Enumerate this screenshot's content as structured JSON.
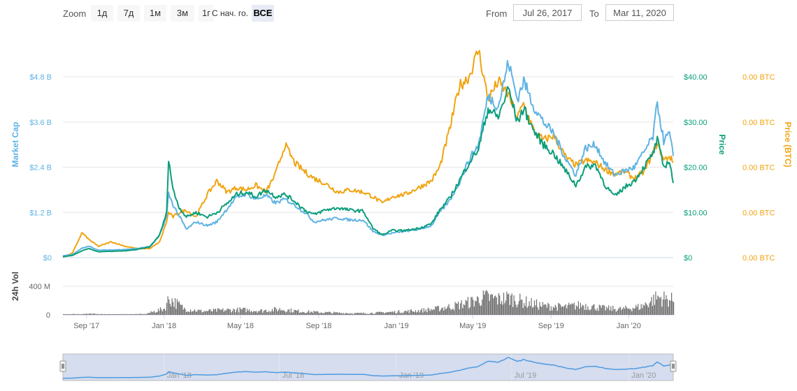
{
  "toolbar": {
    "zoom_label": "Zoom",
    "zoom_buttons": [
      "1д",
      "7д",
      "1м",
      "3м",
      "1г",
      "С нач. го.",
      "ВСЕ"
    ],
    "active_button": "ВСЕ",
    "from_label": "From",
    "from_value": "Jul 26, 2017",
    "to_label": "To",
    "to_value": "Mar 11, 2020"
  },
  "colors": {
    "market_cap": "#5fb3e3",
    "price": "#0a9e7a",
    "price_btc": "#f0a411",
    "volume": "#6e6e6e",
    "navigator_fill": "#d5ddef",
    "navigator_line": "#4f9be0"
  },
  "chart_data": {
    "type": "line",
    "x_range": [
      "2017-07-26",
      "2020-03-11"
    ],
    "x_ticks": [
      "Sep '17",
      "Jan '18",
      "May '18",
      "Sep '18",
      "Jan '19",
      "May '19",
      "Sep '19",
      "Jan '20"
    ],
    "x_tick_dates": [
      "2017-09-01",
      "2018-01-01",
      "2018-05-01",
      "2018-09-01",
      "2019-01-01",
      "2019-05-01",
      "2019-09-01",
      "2020-01-01"
    ],
    "grid": true,
    "y_axes": {
      "market_cap": {
        "label": "Market Cap",
        "ticks": [
          "$0",
          "$1.2 B",
          "$2.4 B",
          "$3.6 B",
          "$4.8 B"
        ],
        "range": [
          0,
          4.8
        ]
      },
      "price": {
        "label": "Price",
        "ticks": [
          "$0",
          "$10.00",
          "$20.00",
          "$30.00",
          "$40.00"
        ],
        "range": [
          0,
          40
        ]
      },
      "price_btc": {
        "label": "Price (BTC)",
        "ticks": [
          "0.00 BTC",
          "0.00 BTC",
          "0.00 BTC",
          "0.00 BTC",
          "0.00 BTC"
        ]
      },
      "volume": {
        "label": "24h Vol",
        "ticks": [
          "0",
          "400 M"
        ],
        "range": [
          0,
          400
        ]
      }
    },
    "series": [
      {
        "name": "Market Cap",
        "unit": "B USD",
        "points": [
          [
            "2017-07-26",
            0.05
          ],
          [
            "2017-08-10",
            0.08
          ],
          [
            "2017-08-25",
            0.25
          ],
          [
            "2017-09-05",
            0.3
          ],
          [
            "2017-09-20",
            0.2
          ],
          [
            "2017-10-10",
            0.2
          ],
          [
            "2017-11-01",
            0.22
          ],
          [
            "2017-11-20",
            0.24
          ],
          [
            "2017-12-10",
            0.3
          ],
          [
            "2017-12-25",
            0.6
          ],
          [
            "2018-01-05",
            1.1
          ],
          [
            "2018-01-08",
            1.7
          ],
          [
            "2018-01-15",
            1.4
          ],
          [
            "2018-01-25",
            1.1
          ],
          [
            "2018-02-05",
            0.75
          ],
          [
            "2018-02-20",
            0.95
          ],
          [
            "2018-03-10",
            0.85
          ],
          [
            "2018-03-25",
            0.95
          ],
          [
            "2018-04-10",
            1.3
          ],
          [
            "2018-04-25",
            1.6
          ],
          [
            "2018-05-10",
            1.7
          ],
          [
            "2018-05-25",
            1.55
          ],
          [
            "2018-06-10",
            1.65
          ],
          [
            "2018-06-25",
            1.45
          ],
          [
            "2018-07-10",
            1.55
          ],
          [
            "2018-07-25",
            1.4
          ],
          [
            "2018-08-10",
            1.2
          ],
          [
            "2018-08-25",
            0.95
          ],
          [
            "2018-09-10",
            1.0
          ],
          [
            "2018-10-01",
            1.05
          ],
          [
            "2018-10-20",
            1.0
          ],
          [
            "2018-11-10",
            1.0
          ],
          [
            "2018-11-25",
            0.7
          ],
          [
            "2018-12-10",
            0.6
          ],
          [
            "2018-12-25",
            0.65
          ],
          [
            "2019-01-15",
            0.7
          ],
          [
            "2019-02-05",
            0.75
          ],
          [
            "2019-02-25",
            0.85
          ],
          [
            "2019-03-10",
            1.2
          ],
          [
            "2019-03-25",
            1.5
          ],
          [
            "2019-04-10",
            2.0
          ],
          [
            "2019-04-25",
            2.6
          ],
          [
            "2019-05-10",
            3.0
          ],
          [
            "2019-05-25",
            4.3
          ],
          [
            "2019-06-10",
            4.0
          ],
          [
            "2019-06-26",
            5.2
          ],
          [
            "2019-07-10",
            4.2
          ],
          [
            "2019-07-20",
            4.7
          ],
          [
            "2019-08-05",
            4.0
          ],
          [
            "2019-08-20",
            3.6
          ],
          [
            "2019-09-05",
            3.3
          ],
          [
            "2019-09-25",
            2.6
          ],
          [
            "2019-10-10",
            2.2
          ],
          [
            "2019-10-25",
            2.9
          ],
          [
            "2019-11-10",
            3.0
          ],
          [
            "2019-11-25",
            2.5
          ],
          [
            "2019-12-10",
            2.2
          ],
          [
            "2019-12-25",
            2.3
          ],
          [
            "2020-01-10",
            2.4
          ],
          [
            "2020-01-25",
            2.8
          ],
          [
            "2020-02-08",
            3.2
          ],
          [
            "2020-02-15",
            4.1
          ],
          [
            "2020-02-25",
            3.1
          ],
          [
            "2020-03-05",
            3.3
          ],
          [
            "2020-03-11",
            2.7
          ]
        ]
      },
      {
        "name": "Price",
        "unit": "USD",
        "points": [
          [
            "2017-07-26",
            0.2
          ],
          [
            "2017-08-10",
            0.5
          ],
          [
            "2017-08-25",
            1.5
          ],
          [
            "2017-09-05",
            2.0
          ],
          [
            "2017-09-20",
            1.3
          ],
          [
            "2017-10-10",
            1.4
          ],
          [
            "2017-11-01",
            1.5
          ],
          [
            "2017-11-20",
            1.8
          ],
          [
            "2017-12-10",
            2.4
          ],
          [
            "2017-12-25",
            5.0
          ],
          [
            "2018-01-05",
            10.0
          ],
          [
            "2018-01-08",
            22.0
          ],
          [
            "2018-01-15",
            15.0
          ],
          [
            "2018-01-25",
            11.0
          ],
          [
            "2018-02-05",
            9.0
          ],
          [
            "2018-02-20",
            10.0
          ],
          [
            "2018-03-10",
            9.0
          ],
          [
            "2018-03-25",
            10.0
          ],
          [
            "2018-04-10",
            12.0
          ],
          [
            "2018-04-25",
            14.0
          ],
          [
            "2018-05-10",
            14.5
          ],
          [
            "2018-05-25",
            13.5
          ],
          [
            "2018-06-10",
            15.0
          ],
          [
            "2018-06-25",
            13.5
          ],
          [
            "2018-07-10",
            14.0
          ],
          [
            "2018-07-25",
            12.5
          ],
          [
            "2018-08-10",
            10.5
          ],
          [
            "2018-08-25",
            9.5
          ],
          [
            "2018-09-10",
            10.5
          ],
          [
            "2018-10-01",
            11.0
          ],
          [
            "2018-10-20",
            10.5
          ],
          [
            "2018-11-10",
            10.3
          ],
          [
            "2018-11-25",
            6.5
          ],
          [
            "2018-12-10",
            5.0
          ],
          [
            "2018-12-25",
            6.0
          ],
          [
            "2019-01-15",
            6.0
          ],
          [
            "2019-02-05",
            6.5
          ],
          [
            "2019-02-25",
            7.5
          ],
          [
            "2019-03-10",
            10.5
          ],
          [
            "2019-03-25",
            13.0
          ],
          [
            "2019-04-10",
            17.0
          ],
          [
            "2019-04-25",
            21.0
          ],
          [
            "2019-05-10",
            24.0
          ],
          [
            "2019-05-25",
            33.0
          ],
          [
            "2019-06-10",
            31.0
          ],
          [
            "2019-06-26",
            37.5
          ],
          [
            "2019-07-10",
            30.0
          ],
          [
            "2019-07-20",
            33.0
          ],
          [
            "2019-08-05",
            28.0
          ],
          [
            "2019-08-20",
            25.0
          ],
          [
            "2019-09-05",
            23.0
          ],
          [
            "2019-09-25",
            19.0
          ],
          [
            "2019-10-10",
            16.0
          ],
          [
            "2019-10-25",
            20.0
          ],
          [
            "2019-11-10",
            20.5
          ],
          [
            "2019-11-25",
            16.0
          ],
          [
            "2019-12-10",
            13.5
          ],
          [
            "2019-12-25",
            15.5
          ],
          [
            "2020-01-10",
            17.0
          ],
          [
            "2020-01-25",
            20.0
          ],
          [
            "2020-02-08",
            23.0
          ],
          [
            "2020-02-15",
            26.0
          ],
          [
            "2020-02-25",
            20.0
          ],
          [
            "2020-03-05",
            21.5
          ],
          [
            "2020-03-11",
            16.5
          ]
        ]
      },
      {
        "name": "Price (BTC)",
        "unit": "BTC",
        "points": [
          [
            "2017-07-26",
            0.1
          ],
          [
            "2017-08-10",
            1.0
          ],
          [
            "2017-08-25",
            5.5
          ],
          [
            "2017-09-05",
            4.0
          ],
          [
            "2017-09-20",
            2.5
          ],
          [
            "2017-10-10",
            3.5
          ],
          [
            "2017-11-01",
            2.5
          ],
          [
            "2017-11-20",
            2.0
          ],
          [
            "2017-12-10",
            2.0
          ],
          [
            "2017-12-25",
            3.5
          ],
          [
            "2018-01-05",
            8.0
          ],
          [
            "2018-01-08",
            10.0
          ],
          [
            "2018-01-15",
            9.0
          ],
          [
            "2018-01-25",
            10.0
          ],
          [
            "2018-02-05",
            10.5
          ],
          [
            "2018-02-20",
            9.0
          ],
          [
            "2018-03-10",
            14.0
          ],
          [
            "2018-03-25",
            17.0
          ],
          [
            "2018-04-10",
            14.5
          ],
          [
            "2018-04-25",
            15.5
          ],
          [
            "2018-05-10",
            15.0
          ],
          [
            "2018-05-25",
            16.0
          ],
          [
            "2018-06-10",
            14.5
          ],
          [
            "2018-06-25",
            18.5
          ],
          [
            "2018-07-10",
            25.0
          ],
          [
            "2018-07-25",
            21.0
          ],
          [
            "2018-08-10",
            19.0
          ],
          [
            "2018-08-25",
            17.5
          ],
          [
            "2018-09-10",
            16.5
          ],
          [
            "2018-10-01",
            14.5
          ],
          [
            "2018-10-20",
            15.0
          ],
          [
            "2018-11-10",
            14.5
          ],
          [
            "2018-11-25",
            13.5
          ],
          [
            "2018-12-10",
            12.0
          ],
          [
            "2018-12-25",
            13.5
          ],
          [
            "2019-01-15",
            14.0
          ],
          [
            "2019-02-05",
            15.5
          ],
          [
            "2019-02-25",
            17.0
          ],
          [
            "2019-03-10",
            20.0
          ],
          [
            "2019-03-25",
            28.0
          ],
          [
            "2019-04-10",
            38.0
          ],
          [
            "2019-04-25",
            40.0
          ],
          [
            "2019-05-10",
            46.0
          ],
          [
            "2019-05-25",
            35.0
          ],
          [
            "2019-06-10",
            39.0
          ],
          [
            "2019-06-26",
            36.0
          ],
          [
            "2019-07-10",
            31.0
          ],
          [
            "2019-07-20",
            34.0
          ],
          [
            "2019-08-05",
            28.0
          ],
          [
            "2019-08-20",
            26.0
          ],
          [
            "2019-09-05",
            27.0
          ],
          [
            "2019-09-25",
            22.0
          ],
          [
            "2019-10-10",
            20.5
          ],
          [
            "2019-10-25",
            21.5
          ],
          [
            "2019-11-10",
            21.0
          ],
          [
            "2019-11-25",
            19.5
          ],
          [
            "2019-12-10",
            18.5
          ],
          [
            "2019-12-25",
            19.0
          ],
          [
            "2020-01-10",
            17.5
          ],
          [
            "2020-01-25",
            19.0
          ],
          [
            "2020-02-08",
            23.0
          ],
          [
            "2020-02-15",
            25.5
          ],
          [
            "2020-02-25",
            21.5
          ],
          [
            "2020-03-05",
            22.5
          ],
          [
            "2020-03-11",
            21.0
          ]
        ]
      },
      {
        "name": "24h Vol",
        "unit": "M USD",
        "points": [
          [
            "2017-07-26",
            10
          ],
          [
            "2017-09-01",
            20
          ],
          [
            "2017-10-15",
            10
          ],
          [
            "2017-12-01",
            15
          ],
          [
            "2018-01-01",
            120
          ],
          [
            "2018-01-08",
            320
          ],
          [
            "2018-02-01",
            120
          ],
          [
            "2018-03-01",
            70
          ],
          [
            "2018-04-01",
            90
          ],
          [
            "2018-05-01",
            100
          ],
          [
            "2018-06-01",
            80
          ],
          [
            "2018-07-01",
            110
          ],
          [
            "2018-08-01",
            70
          ],
          [
            "2018-09-01",
            50
          ],
          [
            "2018-10-01",
            40
          ],
          [
            "2018-11-01",
            30
          ],
          [
            "2018-12-01",
            40
          ],
          [
            "2019-01-01",
            60
          ],
          [
            "2019-02-01",
            80
          ],
          [
            "2019-03-01",
            110
          ],
          [
            "2019-04-01",
            170
          ],
          [
            "2019-05-01",
            260
          ],
          [
            "2019-05-20",
            340
          ],
          [
            "2019-06-10",
            300
          ],
          [
            "2019-06-26",
            330
          ],
          [
            "2019-07-20",
            250
          ],
          [
            "2019-08-20",
            170
          ],
          [
            "2019-09-20",
            150
          ],
          [
            "2019-10-20",
            190
          ],
          [
            "2019-11-20",
            130
          ],
          [
            "2019-12-20",
            110
          ],
          [
            "2020-01-20",
            160
          ],
          [
            "2020-02-15",
            340
          ],
          [
            "2020-03-11",
            280
          ]
        ]
      }
    ],
    "navigator": {
      "ticks": [
        "Jan '18",
        "Jul '18",
        "Jan '19",
        "Jul '19",
        "Jan '20"
      ],
      "tick_dates": [
        "2018-01-01",
        "2018-07-01",
        "2019-01-01",
        "2019-07-01",
        "2020-01-01"
      ]
    }
  }
}
